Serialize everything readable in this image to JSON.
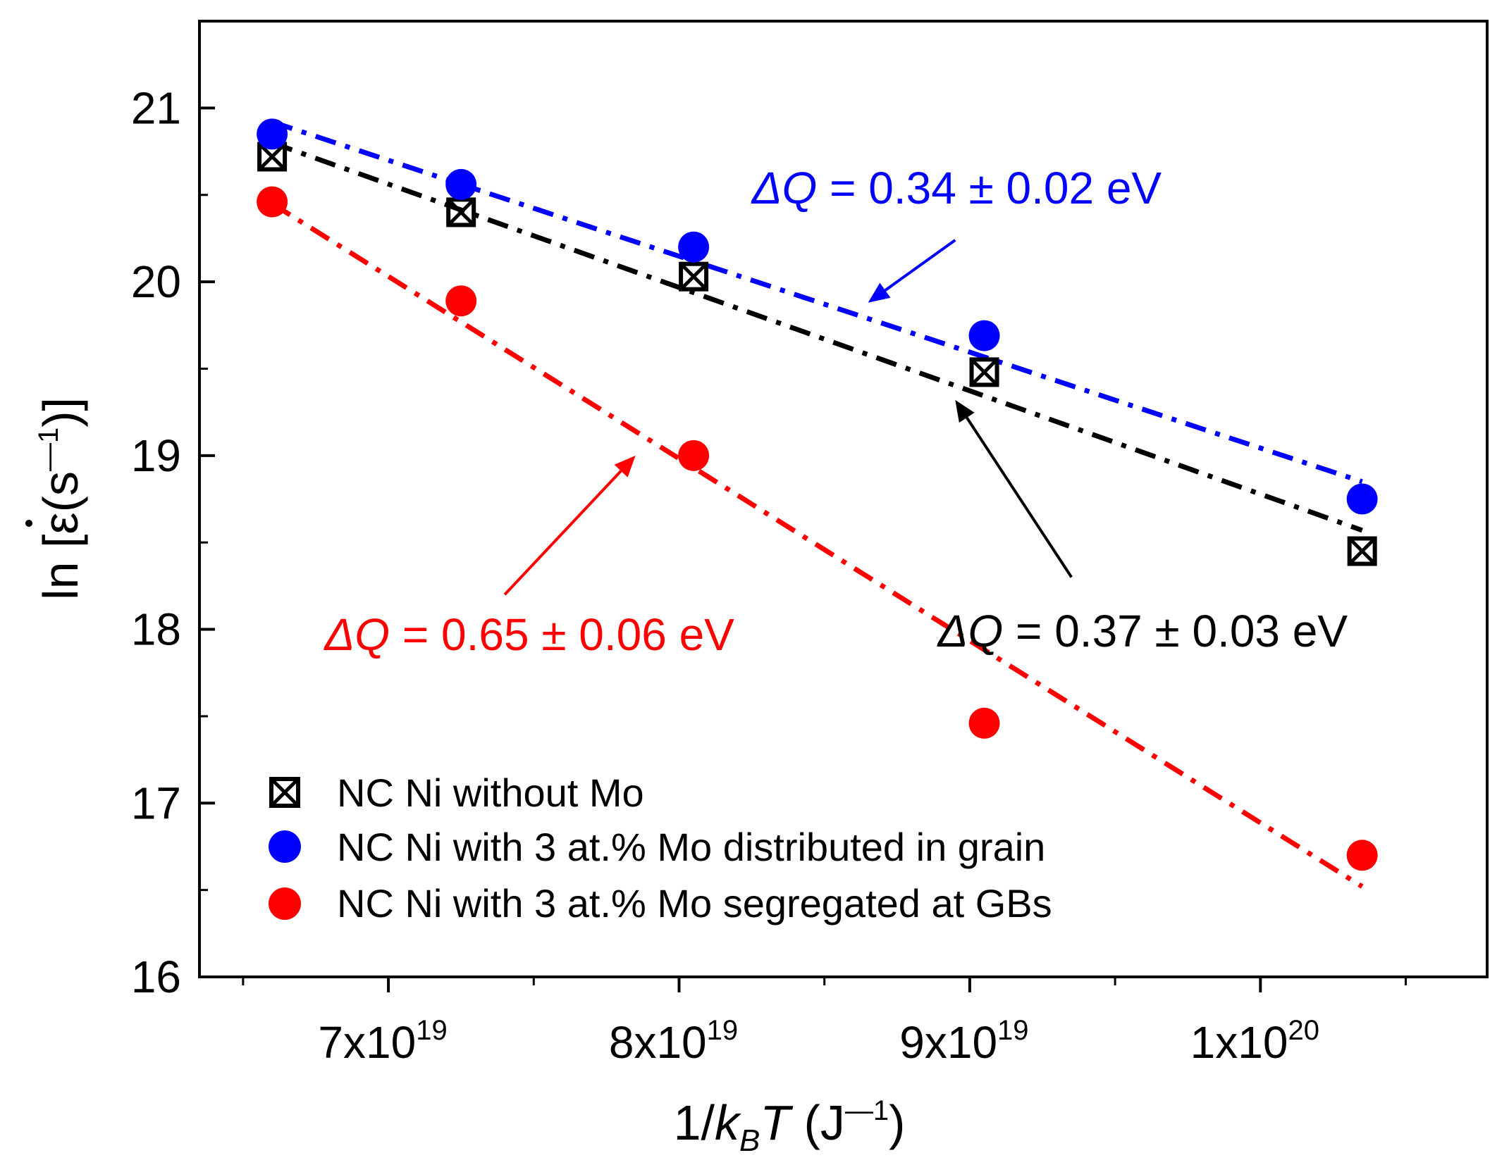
{
  "chart_data": {
    "type": "scatter",
    "xlabel": "1/kBT (J⁻¹)",
    "ylabel": "ln [ε̇(s⁻¹)]",
    "xlabel_parts": {
      "prefix": "1/",
      "k": "k",
      "k_sub": "B",
      "t": "T",
      "unit_open": " (J",
      "unit_sup": "—1",
      "unit_close": ")"
    },
    "ylabel_parts": {
      "prefix": "ln [",
      "epsilon": "ε",
      "unit_open": "(s",
      "unit_sup": "—1",
      "unit_close": ")]"
    },
    "xlim": [
      6.35e+19,
      1.078e+20
    ],
    "ylim": [
      16,
      21.5
    ],
    "x_ticks": [
      {
        "value": 7e+19,
        "mantissa": "7x10",
        "exp": "19"
      },
      {
        "value": 8e+19,
        "mantissa": "8x10",
        "exp": "19"
      },
      {
        "value": 9e+19,
        "mantissa": "9x10",
        "exp": "19"
      },
      {
        "value": 1e+20,
        "mantissa": "1x10",
        "exp": "20"
      }
    ],
    "x_minor_ticks": [
      6.5e+19,
      7.5e+19,
      8.5e+19,
      9.5e+19,
      1.05e+20
    ],
    "y_ticks": [
      16,
      17,
      18,
      19,
      20,
      21
    ],
    "y_minor_ticks": [
      16.5,
      17.5,
      18.5,
      19.5,
      20.5,
      21.5
    ],
    "series": [
      {
        "name": "NC Ni without Mo",
        "marker": "crossed-square",
        "color": "#000000",
        "x": [
          6.6e+19,
          7.25e+19,
          8.05e+19,
          9.05e+19,
          1.035e+20
        ],
        "y": [
          20.72,
          20.4,
          20.03,
          19.48,
          18.45
        ],
        "fit": {
          "x": [
            6.6e+19,
            1.035e+20
          ],
          "y": [
            20.8,
            18.57
          ]
        }
      },
      {
        "name": "NC Ni with 3 at.% Mo distributed in grain",
        "marker": "circle",
        "color": "#0000ff",
        "x": [
          6.6e+19,
          7.25e+19,
          8.05e+19,
          9.05e+19,
          1.035e+20
        ],
        "y": [
          20.85,
          20.56,
          20.2,
          19.69,
          18.75
        ],
        "fit": {
          "x": [
            6.6e+19,
            1.035e+20
          ],
          "y": [
            20.92,
            18.85
          ]
        }
      },
      {
        "name": "NC Ni with 3 at.% Mo segregated at GBs",
        "marker": "circle",
        "color": "#ff0000",
        "x": [
          6.6e+19,
          7.25e+19,
          8.05e+19,
          9.05e+19,
          1.035e+20
        ],
        "y": [
          20.46,
          19.89,
          19.0,
          17.46,
          16.7
        ],
        "fit": {
          "x": [
            6.6e+19,
            1.035e+20
          ],
          "y": [
            20.45,
            16.52
          ]
        }
      }
    ],
    "annotations": [
      {
        "name": "blue",
        "prefix": "ΔQ",
        "rest": " = 0.34 ± 0.02 eV",
        "color": "#0000ff",
        "text_x": 8.25e+19,
        "text_y": 20.45,
        "arrow_from": [
          8.95e+19,
          20.24
        ],
        "arrow_to": [
          8.65e+19,
          19.88
        ]
      },
      {
        "name": "black",
        "prefix": "ΔQ",
        "rest": " = 0.37 ± 0.03 eV",
        "color": "#000000",
        "text_x": 8.89e+19,
        "text_y": 17.9,
        "arrow_from": [
          9.35e+19,
          18.3
        ],
        "arrow_to": [
          8.95e+19,
          19.32
        ]
      },
      {
        "name": "red",
        "prefix": "ΔQ",
        "rest": " = 0.65 ± 0.06 eV",
        "color": "#ff0000",
        "text_x": 6.78e+19,
        "text_y": 17.88,
        "arrow_from": [
          7.4e+19,
          18.2
        ],
        "arrow_to": [
          7.85e+19,
          19.0
        ]
      }
    ],
    "legend_position": "lower-left"
  }
}
